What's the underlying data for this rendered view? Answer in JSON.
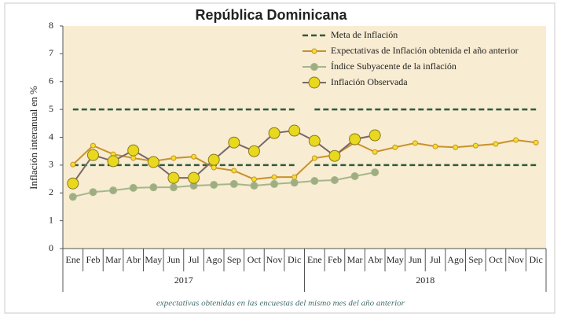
{
  "chart_data": {
    "type": "line",
    "title": "República Dominicana",
    "y_label": "Inflación interanual en %",
    "categories": [
      "Ene",
      "Feb",
      "Mar",
      "Abr",
      "May",
      "Jun",
      "Jul",
      "Ago",
      "Sep",
      "Oct",
      "Nov",
      "Dic",
      "Ene",
      "Feb",
      "Mar",
      "Abr",
      "May",
      "Jun",
      "Jul",
      "Ago",
      "Sep",
      "Oct",
      "Nov",
      "Dic"
    ],
    "years": [
      {
        "label": "2017",
        "from": 0,
        "to": 11
      },
      {
        "label": "2018",
        "from": 12,
        "to": 23
      }
    ],
    "ylim": [
      0,
      8
    ],
    "yticks": [
      0,
      1,
      2,
      3,
      4,
      5,
      6,
      7,
      8
    ],
    "series": [
      {
        "name": "Meta de Inflación",
        "color": "#2f5b3d",
        "values": [
          3,
          3,
          3,
          3,
          3,
          3,
          3,
          3,
          3,
          3,
          3,
          3,
          3,
          3,
          3,
          3,
          3,
          3,
          3,
          3,
          3,
          3,
          3,
          3
        ],
        "upper": [
          5,
          5,
          5,
          5,
          5,
          5,
          5,
          5,
          5,
          5,
          5,
          5,
          5,
          5,
          5,
          5,
          5,
          5,
          5,
          5,
          5,
          5,
          5,
          5
        ]
      },
      {
        "name": "Expectativas de Inflación obtenida el año anterior",
        "color": "#c8922a",
        "marker_color": "#f3e02a",
        "values": [
          3.02,
          3.7,
          3.39,
          3.25,
          3.14,
          3.25,
          3.3,
          2.91,
          2.8,
          2.49,
          2.57,
          2.57,
          3.25,
          3.36,
          3.81,
          3.47,
          3.64,
          3.79,
          3.67,
          3.64,
          3.7,
          3.76,
          3.9,
          3.81
        ]
      },
      {
        "name": "Índice Subyacente de la inflación",
        "color": "#a5b58c",
        "marker_color": "#9fae80",
        "values": [
          1.86,
          2.03,
          2.09,
          2.18,
          2.2,
          2.2,
          2.26,
          2.29,
          2.32,
          2.26,
          2.32,
          2.37,
          2.43,
          2.46,
          2.6,
          2.74,
          null,
          null,
          null,
          null,
          null,
          null,
          null,
          null
        ]
      },
      {
        "name": "Inflación Observada",
        "color": "#7a6868",
        "marker_color": "#e8d81e",
        "values": [
          2.34,
          3.36,
          3.14,
          3.53,
          3.11,
          2.54,
          2.54,
          3.19,
          3.81,
          3.5,
          4.15,
          4.24,
          3.87,
          3.33,
          3.93,
          4.07,
          null,
          null,
          null,
          null,
          null,
          null,
          null,
          null
        ]
      }
    ],
    "footnote": "expectativas obtenidas en las encuestas del mismo mes del año anterior"
  }
}
